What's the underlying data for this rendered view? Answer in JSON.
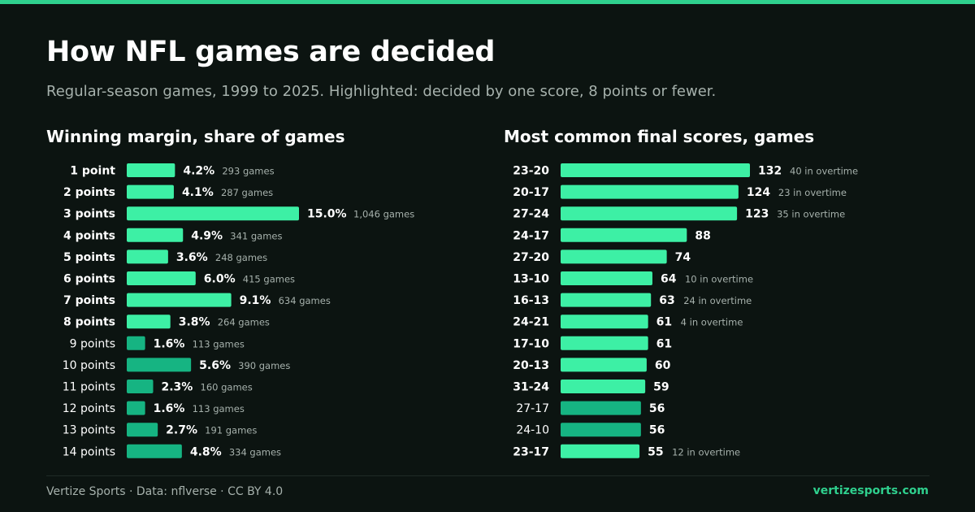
{
  "title": "How NFL games are decided",
  "subtitle": "Regular-season games, 1999 to 2025. Highlighted: decided by one score, 8 points or fewer.",
  "colors": {
    "highlight": "#3df0a5",
    "normal": "#16b482",
    "accent": "#2fd08e",
    "background": "#0c1411"
  },
  "chart_data": [
    {
      "type": "bar",
      "orientation": "horizontal",
      "title": "Winning margin, share of games",
      "unit": "%",
      "series": [
        {
          "category": "1 point",
          "value": 4.2,
          "value_label": "4.2%",
          "note": "293 games",
          "highlighted": true
        },
        {
          "category": "2 points",
          "value": 4.1,
          "value_label": "4.1%",
          "note": "287 games",
          "highlighted": true
        },
        {
          "category": "3 points",
          "value": 15.0,
          "value_label": "15.0%",
          "note": "1,046 games",
          "highlighted": true
        },
        {
          "category": "4 points",
          "value": 4.9,
          "value_label": "4.9%",
          "note": "341 games",
          "highlighted": true
        },
        {
          "category": "5 points",
          "value": 3.6,
          "value_label": "3.6%",
          "note": "248 games",
          "highlighted": true
        },
        {
          "category": "6 points",
          "value": 6.0,
          "value_label": "6.0%",
          "note": "415 games",
          "highlighted": true
        },
        {
          "category": "7 points",
          "value": 9.1,
          "value_label": "9.1%",
          "note": "634 games",
          "highlighted": true
        },
        {
          "category": "8 points",
          "value": 3.8,
          "value_label": "3.8%",
          "note": "264 games",
          "highlighted": true
        },
        {
          "category": "9 points",
          "value": 1.6,
          "value_label": "1.6%",
          "note": "113 games",
          "highlighted": false
        },
        {
          "category": "10 points",
          "value": 5.6,
          "value_label": "5.6%",
          "note": "390 games",
          "highlighted": false
        },
        {
          "category": "11 points",
          "value": 2.3,
          "value_label": "2.3%",
          "note": "160 games",
          "highlighted": false
        },
        {
          "category": "12 points",
          "value": 1.6,
          "value_label": "1.6%",
          "note": "113 games",
          "highlighted": false
        },
        {
          "category": "13 points",
          "value": 2.7,
          "value_label": "2.7%",
          "note": "191 games",
          "highlighted": false
        },
        {
          "category": "14 points",
          "value": 4.8,
          "value_label": "4.8%",
          "note": "334 games",
          "highlighted": false
        }
      ]
    },
    {
      "type": "bar",
      "orientation": "horizontal",
      "title": "Most common final scores, games",
      "unit": "games",
      "series": [
        {
          "category": "23-20",
          "value": 132,
          "value_label": "132",
          "note": "40 in overtime",
          "highlighted": true
        },
        {
          "category": "20-17",
          "value": 124,
          "value_label": "124",
          "note": "23 in overtime",
          "highlighted": true
        },
        {
          "category": "27-24",
          "value": 123,
          "value_label": "123",
          "note": "35 in overtime",
          "highlighted": true
        },
        {
          "category": "24-17",
          "value": 88,
          "value_label": "88",
          "note": "",
          "highlighted": true
        },
        {
          "category": "27-20",
          "value": 74,
          "value_label": "74",
          "note": "",
          "highlighted": true
        },
        {
          "category": "13-10",
          "value": 64,
          "value_label": "64",
          "note": "10 in overtime",
          "highlighted": true
        },
        {
          "category": "16-13",
          "value": 63,
          "value_label": "63",
          "note": "24 in overtime",
          "highlighted": true
        },
        {
          "category": "24-21",
          "value": 61,
          "value_label": "61",
          "note": "4 in overtime",
          "highlighted": true
        },
        {
          "category": "17-10",
          "value": 61,
          "value_label": "61",
          "note": "",
          "highlighted": true
        },
        {
          "category": "20-13",
          "value": 60,
          "value_label": "60",
          "note": "",
          "highlighted": true
        },
        {
          "category": "31-24",
          "value": 59,
          "value_label": "59",
          "note": "",
          "highlighted": true
        },
        {
          "category": "27-17",
          "value": 56,
          "value_label": "56",
          "note": "",
          "highlighted": false
        },
        {
          "category": "24-10",
          "value": 56,
          "value_label": "56",
          "note": "",
          "highlighted": false
        },
        {
          "category": "23-17",
          "value": 55,
          "value_label": "55",
          "note": "12 in overtime",
          "highlighted": true
        }
      ]
    }
  ],
  "footer": {
    "credit": "Vertize Sports · Data: nflverse · CC BY 4.0",
    "site": "vertizesports.com"
  }
}
